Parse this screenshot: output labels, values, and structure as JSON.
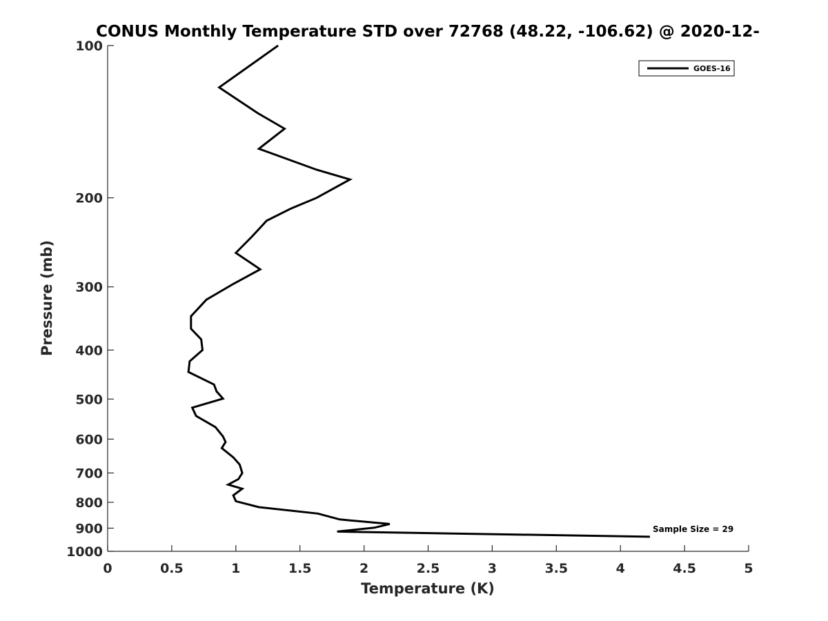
{
  "chart_data": {
    "type": "line",
    "title": "CONUS Monthly Temperature STD over 72768 (48.22, -106.62) @ 2020-12-",
    "xlabel": "Temperature (K)",
    "ylabel": "Pressure (mb)",
    "xlim": [
      0,
      5
    ],
    "ylim": [
      100,
      1000
    ],
    "y_scale": "log",
    "y_reversed": true,
    "x_ticks": [
      0,
      0.5,
      1,
      1.5,
      2,
      2.5,
      3,
      3.5,
      4,
      4.5,
      5
    ],
    "x_tick_labels": [
      "0",
      "0.5",
      "1",
      "1.5",
      "2",
      "2.5",
      "3",
      "3.5",
      "4",
      "4.5",
      "5"
    ],
    "y_ticks": [
      100,
      200,
      300,
      400,
      500,
      600,
      700,
      800,
      900,
      1000
    ],
    "y_tick_labels": [
      "100",
      "200",
      "300",
      "400",
      "500",
      "600",
      "700",
      "800",
      "900",
      "1000"
    ],
    "grid": false,
    "legend_position": "top-right",
    "annotation": "Sample Size = 29",
    "series": [
      {
        "name": "GOES-16",
        "color": "#000000",
        "points": [
          [
            1.33,
            100
          ],
          [
            0.87,
            121
          ],
          [
            1.17,
            136
          ],
          [
            1.38,
            146
          ],
          [
            1.18,
            160
          ],
          [
            1.63,
            176
          ],
          [
            1.89,
            184
          ],
          [
            1.63,
            200
          ],
          [
            1.43,
            210
          ],
          [
            1.24,
            222
          ],
          [
            1.13,
            238
          ],
          [
            1.0,
            257
          ],
          [
            1.19,
            277
          ],
          [
            0.98,
            296
          ],
          [
            0.77,
            318
          ],
          [
            0.65,
            343
          ],
          [
            0.65,
            363
          ],
          [
            0.73,
            381
          ],
          [
            0.74,
            400
          ],
          [
            0.64,
            421
          ],
          [
            0.63,
            442
          ],
          [
            0.83,
            468
          ],
          [
            0.85,
            483
          ],
          [
            0.9,
            499
          ],
          [
            0.66,
            520
          ],
          [
            0.69,
            540
          ],
          [
            0.84,
            568
          ],
          [
            0.9,
            593
          ],
          [
            0.92,
            608
          ],
          [
            0.89,
            625
          ],
          [
            0.98,
            652
          ],
          [
            1.03,
            674
          ],
          [
            1.05,
            700
          ],
          [
            1.02,
            720
          ],
          [
            0.94,
            738
          ],
          [
            1.05,
            752
          ],
          [
            0.98,
            775
          ],
          [
            1.0,
            796
          ],
          [
            1.18,
            818
          ],
          [
            1.64,
            842
          ],
          [
            1.81,
            865
          ],
          [
            2.2,
            883
          ],
          [
            2.08,
            898
          ],
          [
            1.79,
            914
          ],
          [
            4.23,
            936
          ]
        ]
      }
    ]
  }
}
